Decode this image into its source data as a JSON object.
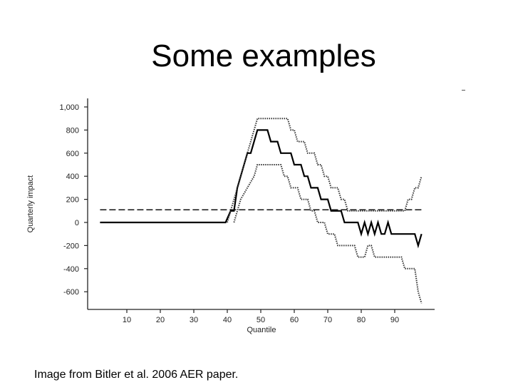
{
  "slide": {
    "title": "Some examples",
    "caption": "Image from Bitler et al. 2006 AER paper."
  },
  "chart_data": {
    "type": "line",
    "title": "",
    "xlabel": "Quantile",
    "ylabel": "Quarterly impact",
    "xlim": [
      0,
      100
    ],
    "ylim": [
      -700,
      1000
    ],
    "xticks": [
      10,
      20,
      30,
      40,
      50,
      60,
      70,
      80,
      90
    ],
    "xtick_labels": [
      "10",
      "20",
      "30",
      "40",
      "50",
      "60",
      "70",
      "80",
      "90"
    ],
    "yticks": [
      1000,
      800,
      600,
      400,
      200,
      0,
      -200,
      -400,
      -600
    ],
    "ytick_labels": [
      "1,000",
      "800",
      "600",
      "400",
      "200",
      "0",
      "-200",
      "-400",
      "-600"
    ],
    "grid": false,
    "legend": "none",
    "series": [
      {
        "role": "estimate",
        "style": "solid",
        "x": [
          2,
          39.5,
          41,
          42,
          43,
          44,
          45,
          46,
          47,
          48,
          49,
          50,
          51,
          52,
          53,
          54,
          55,
          56,
          57,
          58,
          59,
          60,
          61,
          62,
          63,
          64,
          65,
          66,
          67,
          68,
          69,
          70,
          71,
          72,
          73,
          74,
          75,
          76,
          77,
          78,
          79,
          80,
          81,
          82,
          83,
          84,
          85,
          86,
          87,
          88,
          89,
          90,
          91,
          92,
          93,
          94,
          95,
          96,
          97,
          98
        ],
        "y": [
          0,
          0,
          100,
          100,
          300,
          400,
          500,
          600,
          600,
          700,
          800,
          800,
          800,
          800,
          700,
          700,
          700,
          600,
          600,
          600,
          600,
          500,
          500,
          500,
          400,
          400,
          300,
          300,
          300,
          200,
          200,
          200,
          100,
          100,
          100,
          100,
          0,
          0,
          0,
          0,
          0,
          -100,
          0,
          -100,
          0,
          -100,
          0,
          -100,
          -100,
          0,
          -100,
          -100,
          -100,
          -100,
          -100,
          -100,
          -100,
          -100,
          -200,
          -100
        ]
      },
      {
        "role": "upper confidence band",
        "style": "dotted",
        "x": [
          40,
          42,
          44,
          46,
          47,
          48,
          49,
          50,
          51,
          52,
          53,
          54,
          55,
          56,
          57,
          58,
          59,
          60,
          61,
          62,
          63,
          64,
          65,
          66,
          67,
          68,
          69,
          70,
          71,
          72,
          73,
          74,
          75,
          76,
          77,
          78,
          79,
          80,
          81,
          82,
          83,
          84,
          85,
          86,
          87,
          88,
          89,
          90,
          91,
          92,
          93,
          94,
          95,
          96,
          97,
          98
        ],
        "y": [
          0,
          200,
          400,
          600,
          700,
          800,
          900,
          900,
          900,
          900,
          900,
          900,
          900,
          900,
          900,
          900,
          800,
          800,
          700,
          700,
          700,
          600,
          600,
          600,
          500,
          500,
          400,
          400,
          300,
          300,
          300,
          200,
          200,
          100,
          100,
          100,
          100,
          100,
          100,
          100,
          100,
          100,
          100,
          100,
          100,
          100,
          100,
          100,
          100,
          100,
          100,
          200,
          200,
          300,
          300,
          400
        ]
      },
      {
        "role": "lower confidence band",
        "style": "dotted",
        "x": [
          42,
          44,
          46,
          48,
          49,
          50,
          51,
          52,
          53,
          54,
          55,
          56,
          57,
          58,
          59,
          60,
          61,
          62,
          63,
          64,
          65,
          66,
          67,
          68,
          69,
          70,
          71,
          72,
          73,
          74,
          75,
          76,
          77,
          78,
          79,
          80,
          81,
          82,
          83,
          84,
          85,
          86,
          87,
          88,
          89,
          90,
          91,
          92,
          93,
          94,
          95,
          96,
          97,
          98
        ],
        "y": [
          0,
          200,
          300,
          400,
          500,
          500,
          500,
          500,
          500,
          500,
          500,
          500,
          400,
          400,
          300,
          300,
          300,
          200,
          200,
          200,
          100,
          100,
          0,
          0,
          0,
          -100,
          -100,
          -100,
          -200,
          -200,
          -200,
          -200,
          -200,
          -200,
          -300,
          -300,
          -300,
          -200,
          -200,
          -300,
          -300,
          -300,
          -300,
          -300,
          -300,
          -300,
          -300,
          -300,
          -400,
          -400,
          -400,
          -400,
          -600,
          -700
        ]
      },
      {
        "role": "mean impact",
        "style": "dashed",
        "x": [
          2,
          98
        ],
        "y": [
          110,
          110
        ]
      }
    ]
  }
}
